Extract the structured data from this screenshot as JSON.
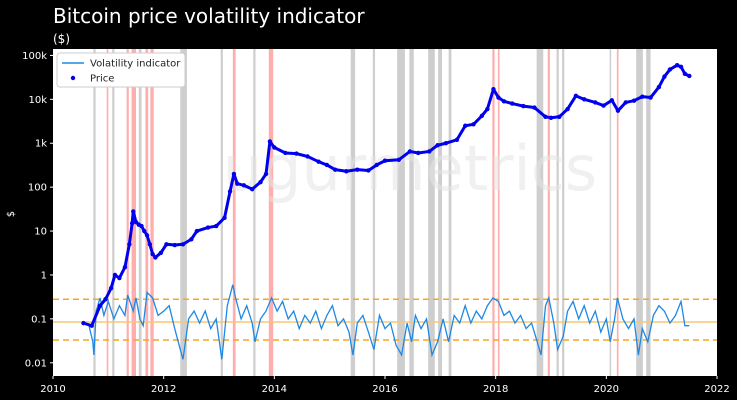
{
  "chart_data": {
    "type": "line",
    "title": "Bitcoin price volatility indicator",
    "subtitle": "($)",
    "ylabel": "$",
    "watermark": "ugurmetrics",
    "y_scale": "log",
    "ylim": [
      0.005,
      140000
    ],
    "xlim": [
      2010,
      2022
    ],
    "grid": false,
    "legend_position": "top-left",
    "x_ticks": [
      "2010",
      "2012",
      "2014",
      "2016",
      "2018",
      "2020",
      "2022"
    ],
    "y_ticks": [
      {
        "value": 100000,
        "label": "100k"
      },
      {
        "value": 10000,
        "label": "10k"
      },
      {
        "value": 1000,
        "label": "1k"
      },
      {
        "value": 100,
        "label": "100"
      },
      {
        "value": 10,
        "label": "10"
      },
      {
        "value": 1,
        "label": "1"
      },
      {
        "value": 0.1,
        "label": "0.1"
      },
      {
        "value": 0.01,
        "label": "0.01"
      }
    ],
    "reference_lines": [
      {
        "value": 0.28,
        "style": "dashed",
        "color": "#f5a623"
      },
      {
        "value": 0.085,
        "style": "solid",
        "color": "#f7c873"
      },
      {
        "value": 0.033,
        "style": "dashed",
        "color": "#f5a623"
      }
    ],
    "high_volatility_bands": [
      [
        2010.97,
        2011.0
      ],
      [
        2011.33,
        2011.37
      ],
      [
        2011.42,
        2011.5
      ],
      [
        2011.67,
        2011.72
      ],
      [
        2011.76,
        2011.82
      ],
      [
        2013.25,
        2013.3
      ],
      [
        2013.9,
        2013.98
      ],
      [
        2017.94,
        2017.98
      ],
      [
        2018.04,
        2018.07
      ],
      [
        2018.94,
        2018.98
      ],
      [
        2020.19,
        2020.22
      ]
    ],
    "low_volatility_bands": [
      [
        2010.73,
        2010.77
      ],
      [
        2011.07,
        2011.11
      ],
      [
        2011.55,
        2011.6
      ],
      [
        2012.3,
        2012.42
      ],
      [
        2013.03,
        2013.07
      ],
      [
        2013.62,
        2013.66
      ],
      [
        2015.38,
        2015.46
      ],
      [
        2015.78,
        2015.82
      ],
      [
        2016.22,
        2016.36
      ],
      [
        2016.44,
        2016.52
      ],
      [
        2016.78,
        2016.9
      ],
      [
        2016.96,
        2017.03
      ],
      [
        2017.15,
        2017.2
      ],
      [
        2018.74,
        2018.86
      ],
      [
        2019.1,
        2019.14
      ],
      [
        2019.2,
        2019.24
      ],
      [
        2020.06,
        2020.08
      ],
      [
        2020.54,
        2020.66
      ],
      [
        2020.72,
        2020.8
      ]
    ],
    "series": [
      {
        "name": "Volatility indicator",
        "color": "#1e88e5",
        "style": "line",
        "points": [
          [
            2010.6,
            0.08
          ],
          [
            2010.65,
            0.07
          ],
          [
            2010.72,
            0.03
          ],
          [
            2010.74,
            0.015
          ],
          [
            2010.78,
            0.15
          ],
          [
            2010.85,
            0.3
          ],
          [
            2010.92,
            0.12
          ],
          [
            2011.0,
            0.25
          ],
          [
            2011.1,
            0.1
          ],
          [
            2011.2,
            0.2
          ],
          [
            2011.3,
            0.12
          ],
          [
            2011.35,
            0.35
          ],
          [
            2011.45,
            0.15
          ],
          [
            2011.5,
            0.3
          ],
          [
            2011.57,
            0.1
          ],
          [
            2011.63,
            0.07
          ],
          [
            2011.7,
            0.4
          ],
          [
            2011.8,
            0.3
          ],
          [
            2011.9,
            0.12
          ],
          [
            2012.0,
            0.15
          ],
          [
            2012.1,
            0.2
          ],
          [
            2012.2,
            0.06
          ],
          [
            2012.3,
            0.02
          ],
          [
            2012.35,
            0.012
          ],
          [
            2012.45,
            0.1
          ],
          [
            2012.55,
            0.15
          ],
          [
            2012.65,
            0.08
          ],
          [
            2012.75,
            0.15
          ],
          [
            2012.85,
            0.06
          ],
          [
            2012.95,
            0.1
          ],
          [
            2013.05,
            0.012
          ],
          [
            2013.15,
            0.2
          ],
          [
            2013.25,
            0.6
          ],
          [
            2013.3,
            0.3
          ],
          [
            2013.4,
            0.1
          ],
          [
            2013.5,
            0.2
          ],
          [
            2013.6,
            0.08
          ],
          [
            2013.65,
            0.03
          ],
          [
            2013.75,
            0.1
          ],
          [
            2013.85,
            0.15
          ],
          [
            2013.95,
            0.3
          ],
          [
            2014.05,
            0.15
          ],
          [
            2014.15,
            0.25
          ],
          [
            2014.25,
            0.1
          ],
          [
            2014.35,
            0.15
          ],
          [
            2014.45,
            0.06
          ],
          [
            2014.55,
            0.12
          ],
          [
            2014.65,
            0.08
          ],
          [
            2014.75,
            0.15
          ],
          [
            2014.85,
            0.06
          ],
          [
            2014.95,
            0.12
          ],
          [
            2015.05,
            0.2
          ],
          [
            2015.15,
            0.07
          ],
          [
            2015.25,
            0.1
          ],
          [
            2015.35,
            0.05
          ],
          [
            2015.42,
            0.015
          ],
          [
            2015.5,
            0.08
          ],
          [
            2015.6,
            0.12
          ],
          [
            2015.7,
            0.05
          ],
          [
            2015.8,
            0.02
          ],
          [
            2015.9,
            0.12
          ],
          [
            2016.0,
            0.06
          ],
          [
            2016.1,
            0.08
          ],
          [
            2016.2,
            0.025
          ],
          [
            2016.3,
            0.015
          ],
          [
            2016.4,
            0.08
          ],
          [
            2016.48,
            0.03
          ],
          [
            2016.55,
            0.12
          ],
          [
            2016.65,
            0.06
          ],
          [
            2016.75,
            0.1
          ],
          [
            2016.85,
            0.015
          ],
          [
            2016.95,
            0.03
          ],
          [
            2017.05,
            0.1
          ],
          [
            2017.15,
            0.03
          ],
          [
            2017.25,
            0.12
          ],
          [
            2017.35,
            0.08
          ],
          [
            2017.45,
            0.2
          ],
          [
            2017.55,
            0.08
          ],
          [
            2017.65,
            0.15
          ],
          [
            2017.75,
            0.1
          ],
          [
            2017.85,
            0.2
          ],
          [
            2017.95,
            0.3
          ],
          [
            2018.05,
            0.25
          ],
          [
            2018.15,
            0.12
          ],
          [
            2018.25,
            0.15
          ],
          [
            2018.35,
            0.08
          ],
          [
            2018.45,
            0.12
          ],
          [
            2018.55,
            0.06
          ],
          [
            2018.65,
            0.08
          ],
          [
            2018.75,
            0.03
          ],
          [
            2018.82,
            0.015
          ],
          [
            2018.9,
            0.2
          ],
          [
            2018.96,
            0.3
          ],
          [
            2019.05,
            0.08
          ],
          [
            2019.12,
            0.02
          ],
          [
            2019.22,
            0.04
          ],
          [
            2019.3,
            0.15
          ],
          [
            2019.4,
            0.25
          ],
          [
            2019.5,
            0.1
          ],
          [
            2019.6,
            0.2
          ],
          [
            2019.7,
            0.08
          ],
          [
            2019.8,
            0.15
          ],
          [
            2019.9,
            0.05
          ],
          [
            2020.0,
            0.1
          ],
          [
            2020.07,
            0.03
          ],
          [
            2020.15,
            0.1
          ],
          [
            2020.2,
            0.3
          ],
          [
            2020.3,
            0.1
          ],
          [
            2020.4,
            0.06
          ],
          [
            2020.5,
            0.1
          ],
          [
            2020.58,
            0.015
          ],
          [
            2020.65,
            0.06
          ],
          [
            2020.75,
            0.03
          ],
          [
            2020.85,
            0.12
          ],
          [
            2020.95,
            0.2
          ],
          [
            2021.05,
            0.15
          ],
          [
            2021.15,
            0.08
          ],
          [
            2021.25,
            0.12
          ],
          [
            2021.35,
            0.25
          ],
          [
            2021.42,
            0.07
          ],
          [
            2021.5,
            0.07
          ]
        ]
      },
      {
        "name": "Price",
        "color": "#0000ee",
        "style": "scatter",
        "points": [
          [
            2010.55,
            0.08
          ],
          [
            2010.7,
            0.07
          ],
          [
            2010.85,
            0.2
          ],
          [
            2010.95,
            0.28
          ],
          [
            2011.05,
            0.5
          ],
          [
            2011.12,
            1.0
          ],
          [
            2011.2,
            0.85
          ],
          [
            2011.3,
            1.5
          ],
          [
            2011.38,
            5.0
          ],
          [
            2011.43,
            15.0
          ],
          [
            2011.45,
            28.0
          ],
          [
            2011.5,
            16.0
          ],
          [
            2011.55,
            14.0
          ],
          [
            2011.6,
            13.0
          ],
          [
            2011.65,
            10.0
          ],
          [
            2011.7,
            8.0
          ],
          [
            2011.75,
            5.0
          ],
          [
            2011.8,
            3.0
          ],
          [
            2011.85,
            2.5
          ],
          [
            2011.95,
            3.2
          ],
          [
            2012.05,
            5.0
          ],
          [
            2012.2,
            4.8
          ],
          [
            2012.35,
            5.0
          ],
          [
            2012.5,
            6.5
          ],
          [
            2012.6,
            10.0
          ],
          [
            2012.8,
            12.0
          ],
          [
            2012.95,
            13.0
          ],
          [
            2013.1,
            20.0
          ],
          [
            2013.2,
            80.0
          ],
          [
            2013.27,
            200.0
          ],
          [
            2013.33,
            120.0
          ],
          [
            2013.45,
            110.0
          ],
          [
            2013.6,
            90.0
          ],
          [
            2013.75,
            130.0
          ],
          [
            2013.85,
            200.0
          ],
          [
            2013.92,
            1100.0
          ],
          [
            2014.0,
            800.0
          ],
          [
            2014.2,
            600.0
          ],
          [
            2014.4,
            580.0
          ],
          [
            2014.6,
            500.0
          ],
          [
            2014.8,
            380.0
          ],
          [
            2014.95,
            320.0
          ],
          [
            2015.1,
            250.0
          ],
          [
            2015.3,
            230.0
          ],
          [
            2015.5,
            250.0
          ],
          [
            2015.7,
            240.0
          ],
          [
            2015.85,
            320.0
          ],
          [
            2016.0,
            400.0
          ],
          [
            2016.25,
            420.0
          ],
          [
            2016.45,
            650.0
          ],
          [
            2016.6,
            600.0
          ],
          [
            2016.8,
            650.0
          ],
          [
            2016.95,
            900.0
          ],
          [
            2017.1,
            1000.0
          ],
          [
            2017.3,
            1200.0
          ],
          [
            2017.45,
            2500.0
          ],
          [
            2017.6,
            2700.0
          ],
          [
            2017.75,
            4200.0
          ],
          [
            2017.85,
            6000.0
          ],
          [
            2017.96,
            17000.0
          ],
          [
            2018.05,
            11000.0
          ],
          [
            2018.15,
            9000.0
          ],
          [
            2018.3,
            8000.0
          ],
          [
            2018.5,
            7000.0
          ],
          [
            2018.7,
            6500.0
          ],
          [
            2018.9,
            4000.0
          ],
          [
            2019.0,
            3800.0
          ],
          [
            2019.15,
            4000.0
          ],
          [
            2019.3,
            6000.0
          ],
          [
            2019.45,
            12000.0
          ],
          [
            2019.6,
            10000.0
          ],
          [
            2019.8,
            8500.0
          ],
          [
            2019.95,
            7200.0
          ],
          [
            2020.1,
            9500.0
          ],
          [
            2020.21,
            5500.0
          ],
          [
            2020.35,
            8500.0
          ],
          [
            2020.5,
            9300.0
          ],
          [
            2020.65,
            11500.0
          ],
          [
            2020.8,
            11000.0
          ],
          [
            2020.95,
            19000.0
          ],
          [
            2021.05,
            33000.0
          ],
          [
            2021.15,
            48000.0
          ],
          [
            2021.28,
            60000.0
          ],
          [
            2021.35,
            55000.0
          ],
          [
            2021.42,
            38000.0
          ],
          [
            2021.5,
            34000.0
          ]
        ]
      }
    ]
  }
}
